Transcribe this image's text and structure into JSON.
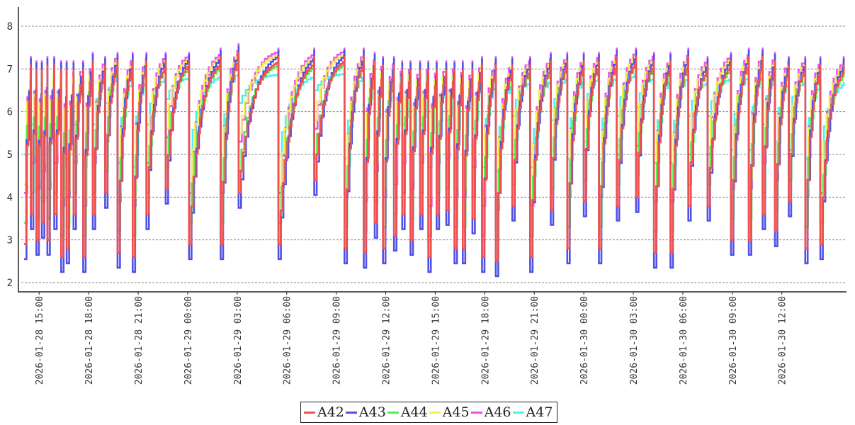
{
  "chart_data": {
    "type": "line",
    "step": true,
    "title": "",
    "xlabel": "",
    "ylabel": "",
    "ylim": [
      2,
      8
    ],
    "yticks": [
      2,
      3,
      4,
      5,
      6,
      7,
      8
    ],
    "grid": "horizontal dashed",
    "legend_position": "bottom-center",
    "xticks": [
      "2026-01-28 15:00",
      "2026-01-28 18:00",
      "2026-01-28 21:00",
      "2026-01-29 00:00",
      "2026-01-29 03:00",
      "2026-01-29 06:00",
      "2026-01-29 09:00",
      "2026-01-29 12:00",
      "2026-01-29 15:00",
      "2026-01-29 18:00",
      "2026-01-29 21:00",
      "2026-01-30 00:00",
      "2026-01-30 03:00",
      "2026-01-30 06:00",
      "2026-01-30 09:00",
      "2026-01-30 12:00"
    ],
    "xlim": [
      "2026-01-28 13:55",
      "2026-01-30 15:55"
    ],
    "cycles": [
      {
        "t": "2026-01-28 14:05",
        "low": 2.8,
        "peak": 7.1
      },
      {
        "t": "2026-01-28 14:30",
        "low": 3.5,
        "peak": 7.0
      },
      {
        "t": "2026-01-28 14:50",
        "low": 2.9,
        "peak": 7.0
      },
      {
        "t": "2026-01-28 15:10",
        "low": 3.3,
        "peak": 7.1
      },
      {
        "t": "2026-01-28 15:30",
        "low": 2.9,
        "peak": 7.1
      },
      {
        "t": "2026-01-28 15:55",
        "low": 3.5,
        "peak": 7.0
      },
      {
        "t": "2026-01-28 16:20",
        "low": 2.5,
        "peak": 7.0
      },
      {
        "t": "2026-01-28 16:40",
        "low": 2.7,
        "peak": 7.0
      },
      {
        "t": "2026-01-28 17:05",
        "low": 3.5,
        "peak": 7.0
      },
      {
        "t": "2026-01-28 17:40",
        "low": 2.5,
        "peak": 7.2
      },
      {
        "t": "2026-01-28 18:15",
        "low": 3.5,
        "peak": 7.1
      },
      {
        "t": "2026-01-28 19:00",
        "low": 4.0,
        "peak": 7.2
      },
      {
        "t": "2026-01-28 19:45",
        "low": 2.6,
        "peak": 7.2
      },
      {
        "t": "2026-01-28 20:40",
        "low": 2.5,
        "peak": 7.2
      },
      {
        "t": "2026-01-28 21:30",
        "low": 3.5,
        "peak": 7.2
      },
      {
        "t": "2026-01-28 22:40",
        "low": 4.1,
        "peak": 7.2
      },
      {
        "t": "2026-01-29 00:05",
        "low": 2.8,
        "peak": 7.3
      },
      {
        "t": "2026-01-29 02:00",
        "low": 2.8,
        "peak": 7.4
      },
      {
        "t": "2026-01-29 03:05",
        "low": 4.0,
        "peak": 7.3
      },
      {
        "t": "2026-01-29 05:30",
        "low": 2.8,
        "peak": 7.3
      },
      {
        "t": "2026-01-29 07:40",
        "low": 4.3,
        "peak": 7.3
      },
      {
        "t": "2026-01-29 09:30",
        "low": 2.7,
        "peak": 7.3
      },
      {
        "t": "2026-01-29 10:40",
        "low": 2.6,
        "peak": 7.2
      },
      {
        "t": "2026-01-29 11:20",
        "low": 3.3,
        "peak": 7.1
      },
      {
        "t": "2026-01-29 11:50",
        "low": 2.7,
        "peak": 7.1
      },
      {
        "t": "2026-01-29 12:30",
        "low": 3.0,
        "peak": 7.0
      },
      {
        "t": "2026-01-29 13:00",
        "low": 3.5,
        "peak": 7.0
      },
      {
        "t": "2026-01-29 13:30",
        "low": 2.9,
        "peak": 7.0
      },
      {
        "t": "2026-01-29 14:05",
        "low": 3.5,
        "peak": 7.0
      },
      {
        "t": "2026-01-29 14:35",
        "low": 2.5,
        "peak": 7.0
      },
      {
        "t": "2026-01-29 15:05",
        "low": 3.5,
        "peak": 7.0
      },
      {
        "t": "2026-01-29 15:40",
        "low": 3.6,
        "peak": 7.0
      },
      {
        "t": "2026-01-29 16:10",
        "low": 2.7,
        "peak": 7.0
      },
      {
        "t": "2026-01-29 16:40",
        "low": 2.7,
        "peak": 7.0
      },
      {
        "t": "2026-01-29 17:15",
        "low": 3.4,
        "peak": 7.1
      },
      {
        "t": "2026-01-29 17:50",
        "low": 2.5,
        "peak": 7.1
      },
      {
        "t": "2026-01-29 18:40",
        "low": 2.4,
        "peak": 7.1
      },
      {
        "t": "2026-01-29 19:40",
        "low": 3.7,
        "peak": 7.1
      },
      {
        "t": "2026-01-29 20:45",
        "low": 2.5,
        "peak": 7.2
      },
      {
        "t": "2026-01-29 22:00",
        "low": 3.6,
        "peak": 7.2
      },
      {
        "t": "2026-01-29 23:00",
        "low": 2.7,
        "peak": 7.2
      },
      {
        "t": "2026-01-30 00:00",
        "low": 3.8,
        "peak": 7.2
      },
      {
        "t": "2026-01-30 00:55",
        "low": 2.7,
        "peak": 7.3
      },
      {
        "t": "2026-01-30 02:00",
        "low": 3.7,
        "peak": 7.3
      },
      {
        "t": "2026-01-30 03:10",
        "low": 3.9,
        "peak": 7.2
      },
      {
        "t": "2026-01-30 04:15",
        "low": 2.6,
        "peak": 7.2
      },
      {
        "t": "2026-01-30 05:15",
        "low": 2.6,
        "peak": 7.3
      },
      {
        "t": "2026-01-30 06:20",
        "low": 3.7,
        "peak": 7.1
      },
      {
        "t": "2026-01-30 07:30",
        "low": 3.7,
        "peak": 7.2
      },
      {
        "t": "2026-01-30 08:55",
        "low": 2.9,
        "peak": 7.3
      },
      {
        "t": "2026-01-30 10:00",
        "low": 2.9,
        "peak": 7.3
      },
      {
        "t": "2026-01-30 10:50",
        "low": 3.5,
        "peak": 7.2
      },
      {
        "t": "2026-01-30 11:35",
        "low": 3.1,
        "peak": 7.1
      },
      {
        "t": "2026-01-30 12:25",
        "low": 3.8,
        "peak": 7.1
      },
      {
        "t": "2026-01-30 13:25",
        "low": 2.7,
        "peak": 7.1
      },
      {
        "t": "2026-01-30 14:20",
        "low": 2.8,
        "peak": 7.1
      }
    ],
    "series": [
      {
        "name": "A42",
        "color": "#f05050",
        "low_offset": 0.1,
        "peak_offset": 0.0
      },
      {
        "name": "A43",
        "color": "#5050e6",
        "low_offset": -0.25,
        "peak_offset": 0.15
      },
      {
        "name": "A44",
        "color": "#50f050",
        "low_offset": 0.6,
        "peak_offset": -0.1
      },
      {
        "name": "A45",
        "color": "#f0f050",
        "low_offset": 1.5,
        "peak_offset": 0.1
      },
      {
        "name": "A46",
        "color": "#f050f0",
        "low_offset": 1.3,
        "peak_offset": 0.2
      },
      {
        "name": "A47",
        "color": "#50f0f0",
        "low_offset": 2.2,
        "peak_offset": -0.4
      }
    ]
  }
}
